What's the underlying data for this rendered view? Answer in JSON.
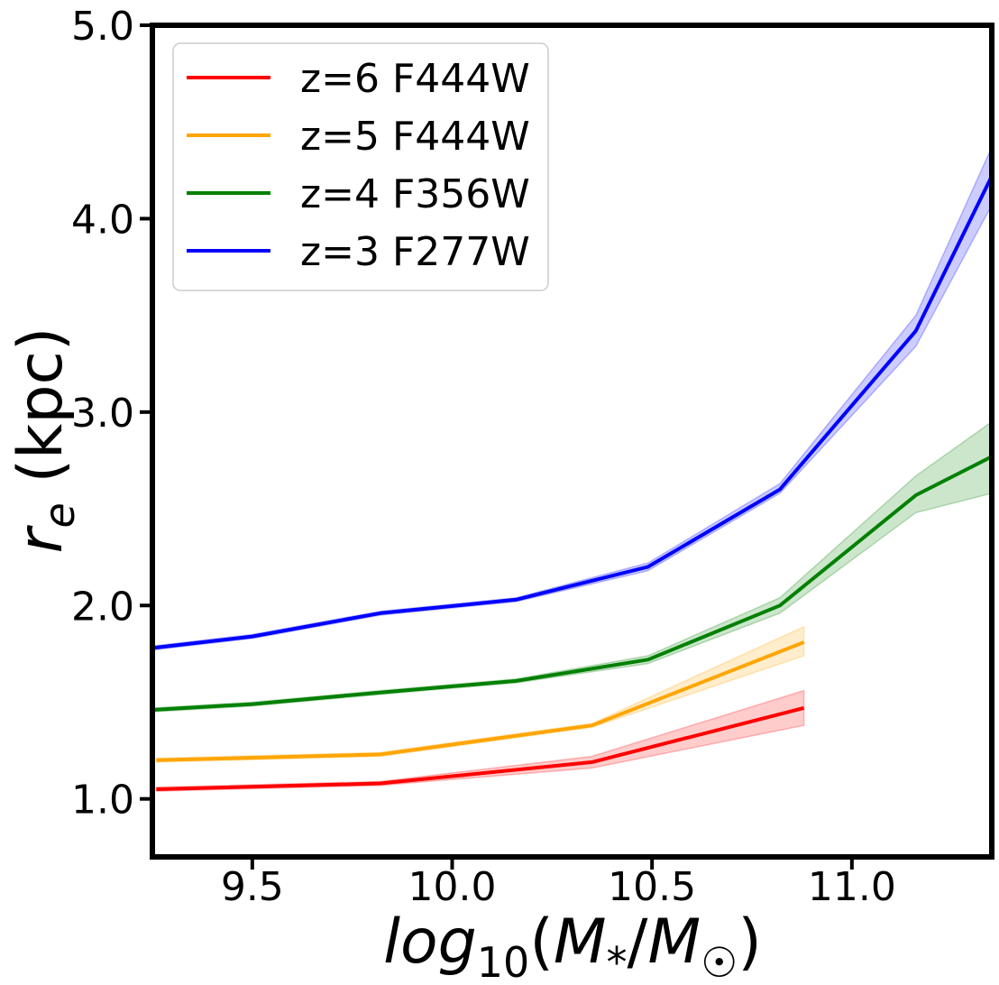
{
  "chart_data": {
    "type": "line",
    "title": "",
    "xlabel": "log10(M*/M☉)",
    "ylabel": "r_e (kpc)",
    "xlim": [
      9.25,
      11.35
    ],
    "ylim": [
      0.7,
      5.0
    ],
    "x_ticks": [
      9.5,
      10.0,
      10.5,
      11.0
    ],
    "x_tick_labels": [
      "9.5",
      "10.0",
      "10.5",
      "11.0"
    ],
    "y_ticks": [
      1.0,
      2.0,
      3.0,
      4.0,
      5.0
    ],
    "y_tick_labels": [
      "1.0",
      "2.0",
      "3.0",
      "4.0",
      "5.0"
    ],
    "grid": false,
    "legend_position": "top-left",
    "series": [
      {
        "name": "z=6 F444W",
        "color": "#ff0000",
        "x": [
          9.26,
          9.82,
          10.35,
          10.88
        ],
        "values": [
          1.05,
          1.08,
          1.19,
          1.47
        ],
        "lower": [
          1.04,
          1.07,
          1.16,
          1.38
        ],
        "upper": [
          1.06,
          1.09,
          1.22,
          1.56
        ]
      },
      {
        "name": "z=5 F444W",
        "color": "#ffa500",
        "x": [
          9.26,
          9.82,
          10.35,
          10.88
        ],
        "values": [
          1.2,
          1.23,
          1.38,
          1.81
        ],
        "lower": [
          1.19,
          1.22,
          1.37,
          1.74
        ],
        "upper": [
          1.21,
          1.24,
          1.39,
          1.89
        ]
      },
      {
        "name": "z=4 F356W",
        "color": "#008000",
        "x": [
          9.25,
          9.5,
          9.82,
          10.16,
          10.49,
          10.82,
          11.16,
          11.35
        ],
        "values": [
          1.46,
          1.49,
          1.55,
          1.61,
          1.72,
          2.0,
          2.57,
          2.77
        ],
        "lower": [
          1.45,
          1.48,
          1.54,
          1.6,
          1.7,
          1.96,
          2.48,
          2.58
        ],
        "upper": [
          1.47,
          1.5,
          1.56,
          1.62,
          1.74,
          2.04,
          2.67,
          2.95
        ]
      },
      {
        "name": "z=3 F277W",
        "color": "#0000ff",
        "x": [
          9.25,
          9.5,
          9.82,
          10.16,
          10.49,
          10.82,
          11.16,
          11.35
        ],
        "values": [
          1.78,
          1.84,
          1.96,
          2.03,
          2.2,
          2.6,
          3.42,
          4.22
        ],
        "lower": [
          1.77,
          1.83,
          1.95,
          2.02,
          2.18,
          2.58,
          3.34,
          4.07
        ],
        "upper": [
          1.79,
          1.85,
          1.97,
          2.04,
          2.22,
          2.63,
          3.5,
          4.37
        ]
      }
    ]
  }
}
